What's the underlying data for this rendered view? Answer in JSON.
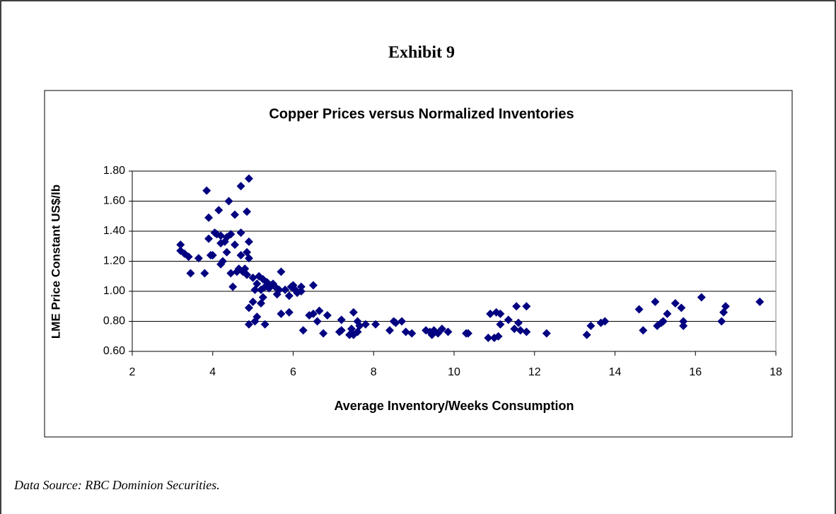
{
  "exhibit_title": "Exhibit 9",
  "source": "Data Source:  RBC Dominion Securities.",
  "chart_data": {
    "type": "scatter",
    "title": "Copper Prices versus Normalized Inventories",
    "x_label": "Average Inventory/Weeks Consumption",
    "y_label": "LME Price Constant US$/lb",
    "color": "#000080",
    "grid": true,
    "xlim": [
      2,
      18
    ],
    "xticks": [
      2,
      4,
      6,
      8,
      10,
      12,
      14,
      16,
      18
    ],
    "ylim": [
      0.6,
      1.8
    ],
    "yticks": [
      {
        "value": 0.6,
        "label": "0.60"
      },
      {
        "value": 0.8,
        "label": "0.80"
      },
      {
        "value": 1.0,
        "label": "1.00"
      },
      {
        "value": 1.2,
        "label": "1.20"
      },
      {
        "value": 1.4,
        "label": "1.40"
      },
      {
        "value": 1.6,
        "label": "1.60"
      },
      {
        "value": 1.8,
        "label": "1.80"
      }
    ],
    "x": [
      3.2,
      3.2,
      3.3,
      3.4,
      3.45,
      3.65,
      3.8,
      3.85,
      3.9,
      3.9,
      3.95,
      4.0,
      4.05,
      4.1,
      4.15,
      4.2,
      4.2,
      4.2,
      4.25,
      4.3,
      4.35,
      4.35,
      4.4,
      4.45,
      4.45,
      4.5,
      4.55,
      4.55,
      4.6,
      4.65,
      4.7,
      4.7,
      4.7,
      4.75,
      4.8,
      4.85,
      4.85,
      4.85,
      4.9,
      4.9,
      4.9,
      4.9,
      4.9,
      5.0,
      5.0,
      5.05,
      5.05,
      5.1,
      5.1,
      5.15,
      5.2,
      5.2,
      5.25,
      5.25,
      5.3,
      5.3,
      5.35,
      5.4,
      5.45,
      5.5,
      5.55,
      5.6,
      5.65,
      5.7,
      5.7,
      5.8,
      5.9,
      5.9,
      5.95,
      6.0,
      6.05,
      6.1,
      6.2,
      6.2,
      6.25,
      6.4,
      6.5,
      6.5,
      6.6,
      6.65,
      6.75,
      6.85,
      7.15,
      7.2,
      7.2,
      7.4,
      7.45,
      7.5,
      7.5,
      7.6,
      7.6,
      7.65,
      7.8,
      8.05,
      8.4,
      8.5,
      8.55,
      8.7,
      8.8,
      8.95,
      9.3,
      9.4,
      9.45,
      9.5,
      9.6,
      9.7,
      9.85,
      10.3,
      10.35,
      10.85,
      10.9,
      11.0,
      11.05,
      11.1,
      11.15,
      11.15,
      11.35,
      11.5,
      11.55,
      11.6,
      11.65,
      11.8,
      11.8,
      12.3,
      13.3,
      13.4,
      13.65,
      13.75,
      14.6,
      14.7,
      15.0,
      15.05,
      15.15,
      15.2,
      15.3,
      15.5,
      15.65,
      15.7,
      15.7,
      16.15,
      16.65,
      16.7,
      16.75,
      17.6
    ],
    "values": [
      1.31,
      1.27,
      1.25,
      1.23,
      1.12,
      1.22,
      1.12,
      1.67,
      1.49,
      1.35,
      1.24,
      1.24,
      1.39,
      1.38,
      1.54,
      1.37,
      1.32,
      1.18,
      1.2,
      1.33,
      1.36,
      1.26,
      1.6,
      1.38,
      1.12,
      1.03,
      1.31,
      1.51,
      1.13,
      1.15,
      1.39,
      1.24,
      1.7,
      1.13,
      1.15,
      1.11,
      1.53,
      1.26,
      1.75,
      1.33,
      1.22,
      0.89,
      0.78,
      0.93,
      1.09,
      1.01,
      0.8,
      0.83,
      1.05,
      1.1,
      1.01,
      0.92,
      1.08,
      0.96,
      1.03,
      0.78,
      1.06,
      1.02,
      1.04,
      1.05,
      1.03,
      0.98,
      1.01,
      1.13,
      0.85,
      1.01,
      0.97,
      0.86,
      1.03,
      1.04,
      1.01,
      0.99,
      1.03,
      1.0,
      0.74,
      0.84,
      1.04,
      0.85,
      0.8,
      0.87,
      0.72,
      0.84,
      0.73,
      0.81,
      0.74,
      0.71,
      0.75,
      0.86,
      0.71,
      0.73,
      0.8,
      0.77,
      0.78,
      0.78,
      0.74,
      0.8,
      0.79,
      0.8,
      0.73,
      0.72,
      0.74,
      0.73,
      0.71,
      0.74,
      0.72,
      0.75,
      0.73,
      0.72,
      0.72,
      0.69,
      0.85,
      0.69,
      0.86,
      0.7,
      0.85,
      0.78,
      0.81,
      0.75,
      0.9,
      0.79,
      0.74,
      0.9,
      0.73,
      0.72,
      0.71,
      0.77,
      0.79,
      0.8,
      0.88,
      0.74,
      0.93,
      0.77,
      0.79,
      0.8,
      0.85,
      0.92,
      0.89,
      0.8,
      0.77,
      0.96,
      0.8,
      0.86,
      0.9,
      0.93
    ]
  }
}
